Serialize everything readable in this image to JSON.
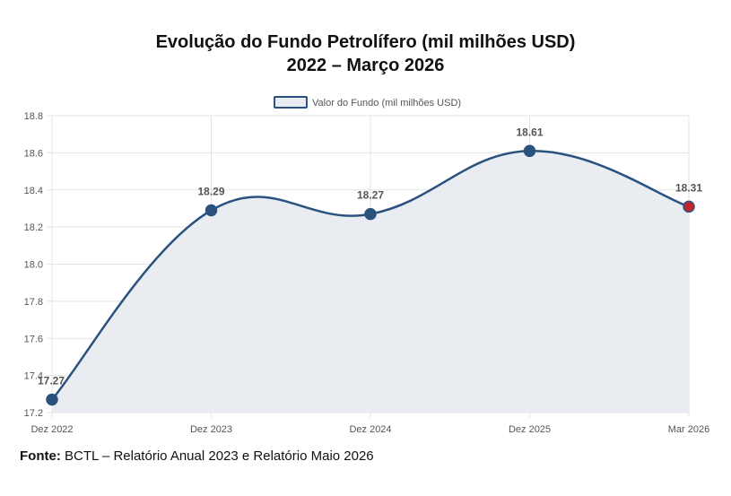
{
  "chart_data": {
    "type": "line",
    "title_lines": [
      "Evolução do Fundo Petrolífero (mil milhões USD)",
      "2022 – Março 2026"
    ],
    "categories": [
      "Dez 2022",
      "Dez 2023",
      "Dez 2024",
      "Dez 2025",
      "Mar 2026"
    ],
    "series": [
      {
        "name": "Valor do Fundo (mil milhões USD)",
        "values": [
          17.27,
          18.29,
          18.27,
          18.61,
          18.31
        ]
      }
    ],
    "data_labels": [
      "17.27",
      "18.29",
      "18.27",
      "18.61",
      "18.31"
    ],
    "ylim": [
      17.2,
      18.8
    ],
    "yticks": [
      "17.2",
      "17.4",
      "17.6",
      "17.8",
      "18.0",
      "18.2",
      "18.4",
      "18.6",
      "18.8"
    ],
    "grid": true,
    "area_fill": true,
    "legend_position": "top",
    "colors": {
      "line": "#2b527f",
      "area": "#e9edf2",
      "point": "#2b527f",
      "last_point": "#c0272d",
      "grid": "#e3e3e3"
    }
  },
  "source": {
    "label": "Fonte:",
    "text": " BCTL – Relatório Anual 2023 e Relatório Maio 2026"
  }
}
